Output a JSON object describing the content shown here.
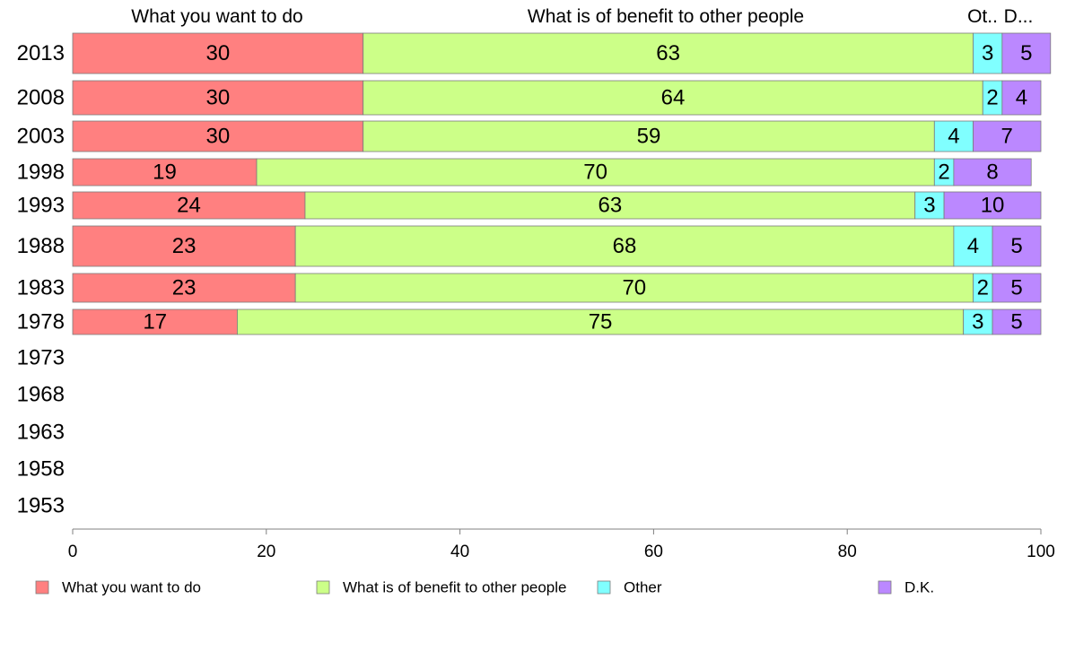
{
  "chart_data": {
    "type": "bar",
    "orientation": "horizontal",
    "stacked": true,
    "categories": [
      "2013",
      "2008",
      "2003",
      "1998",
      "1993",
      "1988",
      "1983",
      "1978",
      "1973",
      "1968",
      "1963",
      "1958",
      "1953"
    ],
    "series": [
      {
        "name": "What you want to do",
        "header": "What you want to do",
        "color": "#ff8080",
        "values": [
          30,
          30,
          30,
          19,
          24,
          23,
          23,
          17,
          null,
          null,
          null,
          null,
          null
        ]
      },
      {
        "name": "What is of benefit to other people",
        "header": "What is of benefit to other people",
        "color": "#ccff88",
        "values": [
          63,
          64,
          59,
          70,
          63,
          68,
          70,
          75,
          null,
          null,
          null,
          null,
          null
        ]
      },
      {
        "name": "Other",
        "header": "Ot..",
        "color": "#80ffff",
        "values": [
          3,
          2,
          4,
          2,
          3,
          4,
          2,
          3,
          null,
          null,
          null,
          null,
          null
        ]
      },
      {
        "name": "D.K.",
        "header": "D...",
        "color": "#bb88ff",
        "values": [
          5,
          4,
          7,
          8,
          10,
          5,
          5,
          5,
          null,
          null,
          null,
          null,
          null
        ]
      }
    ],
    "xlim": [
      0,
      100
    ],
    "xticks": [
      0,
      20,
      40,
      60,
      80,
      100
    ],
    "grid": false,
    "legend_position": "bottom"
  }
}
